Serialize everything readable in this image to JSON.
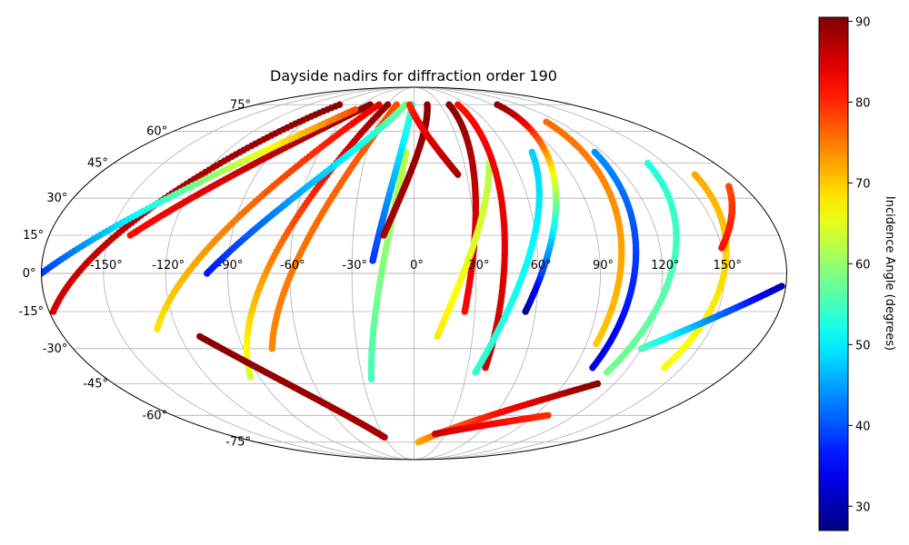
{
  "chart_data": {
    "type": "scatter",
    "projection": "mollweide",
    "title": "Dayside nadirs for diffraction order 190",
    "xlabel": "",
    "ylabel": "",
    "grid": true,
    "lon_ticks": [
      -150,
      -120,
      -90,
      -60,
      -30,
      0,
      30,
      60,
      90,
      120,
      150
    ],
    "lon_tick_labels": [
      "-150°",
      "-120°",
      "-90°",
      "-60°",
      "-30°",
      "0°",
      "30°",
      "60°",
      "90°",
      "120°",
      "150°"
    ],
    "lat_ticks": [
      75,
      60,
      45,
      30,
      15,
      0,
      -15,
      -30,
      -45,
      -60,
      -75
    ],
    "lat_tick_labels": [
      "75°",
      "60°",
      "45°",
      "30°",
      "15°",
      "0°",
      "-15°",
      "-30°",
      "-45°",
      "-60°",
      "-75°"
    ],
    "colorbar": {
      "label": "Incidence Angle (degrees)",
      "colormap": "jet",
      "range": [
        27,
        90.5
      ],
      "ticks": [
        30,
        40,
        50,
        60,
        70,
        80,
        90
      ],
      "tick_labels": [
        "30",
        "40",
        "50",
        "60",
        "70",
        "80",
        "90"
      ]
    },
    "series": [
      {
        "lon_start": -178,
        "lon_end": -85,
        "lat_start": -15,
        "lat_end": 75,
        "inc_start": 85,
        "inc_end": 90
      },
      {
        "lon_start": -140,
        "lon_end": -50,
        "lat_start": 15,
        "lat_end": 75,
        "inc_start": 82,
        "inc_end": 90
      },
      {
        "lon_start": -180,
        "lon_end": -60,
        "lat_start": 0,
        "lat_end": 72,
        "inc_start": 38,
        "inc_end": 78
      },
      {
        "lon_start": -130,
        "lon_end": -40,
        "lat_start": -22,
        "lat_end": 75,
        "inc_start": 68,
        "inc_end": 84
      },
      {
        "lon_start": -95,
        "lon_end": -30,
        "lat_start": -42,
        "lat_end": 75,
        "inc_start": 64,
        "inc_end": 90
      },
      {
        "lon_start": -75,
        "lon_end": -20,
        "lat_start": -30,
        "lat_end": 75,
        "inc_start": 74,
        "inc_end": 78
      },
      {
        "lon_start": -100,
        "lon_end": -10,
        "lat_start": 0,
        "lat_end": 75,
        "inc_start": 36,
        "inc_end": 58
      },
      {
        "lon_start": -25,
        "lon_end": -5,
        "lat_start": -43,
        "lat_end": 50,
        "inc_start": 55,
        "inc_end": 63
      },
      {
        "lon_start": -20,
        "lon_end": -2,
        "lat_start": 5,
        "lat_end": 75,
        "inc_start": 38,
        "inc_end": 55
      },
      {
        "lon_start": -15,
        "lon_end": 15,
        "lat_start": 15,
        "lat_end": 75,
        "inc_start": 88,
        "inc_end": 90
      },
      {
        "lon_start": -5,
        "lon_end": 25,
        "lat_start": 75,
        "lat_end": 40,
        "inc_start": 80,
        "inc_end": 88
      },
      {
        "lon_start": 25,
        "lon_end": 40,
        "lat_start": -15,
        "lat_end": 75,
        "inc_start": 82,
        "inc_end": 90
      },
      {
        "lon_start": 12,
        "lon_end": 45,
        "lat_start": -25,
        "lat_end": 45,
        "inc_start": 68,
        "inc_end": 62
      },
      {
        "lon_start": 40,
        "lon_end": 50,
        "lat_start": -38,
        "lat_end": 75,
        "inc_start": 86,
        "inc_end": 82
      },
      {
        "lon_start": 35,
        "lon_end": 75,
        "lat_start": -40,
        "lat_end": 50,
        "inc_start": 54,
        "inc_end": 48
      },
      {
        "lon_start": 55,
        "lon_end": 95,
        "lat_start": -15,
        "lat_end": 75,
        "inc_start": 28,
        "inc_end": 90
      },
      {
        "lon_start": 100,
        "lon_end": 115,
        "lat_start": -38,
        "lat_end": 50,
        "inc_start": 33,
        "inc_end": 44
      },
      {
        "lon_start": 95,
        "lon_end": 110,
        "lat_start": -28,
        "lat_end": 65,
        "inc_start": 70,
        "inc_end": 76
      },
      {
        "lon_start": 110,
        "lon_end": 140,
        "lat_start": -40,
        "lat_end": 45,
        "inc_start": 58,
        "inc_end": 53
      },
      {
        "lon_start": 140,
        "lon_end": 160,
        "lat_start": -38,
        "lat_end": 40,
        "inc_start": 66,
        "inc_end": 72
      },
      {
        "lon_start": 150,
        "lon_end": 172,
        "lat_start": 10,
        "lat_end": 35,
        "inc_start": 82,
        "inc_end": 78
      },
      {
        "lon_start": 178,
        "lon_end": 120,
        "lat_start": -5,
        "lat_end": -30,
        "inc_start": 30,
        "inc_end": 55
      },
      {
        "lon_start": 5,
        "lon_end": 110,
        "lat_start": -75,
        "lat_end": -45,
        "inc_start": 72,
        "inc_end": 90
      },
      {
        "lon_start": -110,
        "lon_end": -30,
        "lat_start": -25,
        "lat_end": -72,
        "inc_start": 90,
        "inc_end": 88
      },
      {
        "lon_start": 20,
        "lon_end": 100,
        "lat_start": -70,
        "lat_end": -60,
        "inc_start": 86,
        "inc_end": 80
      }
    ]
  }
}
